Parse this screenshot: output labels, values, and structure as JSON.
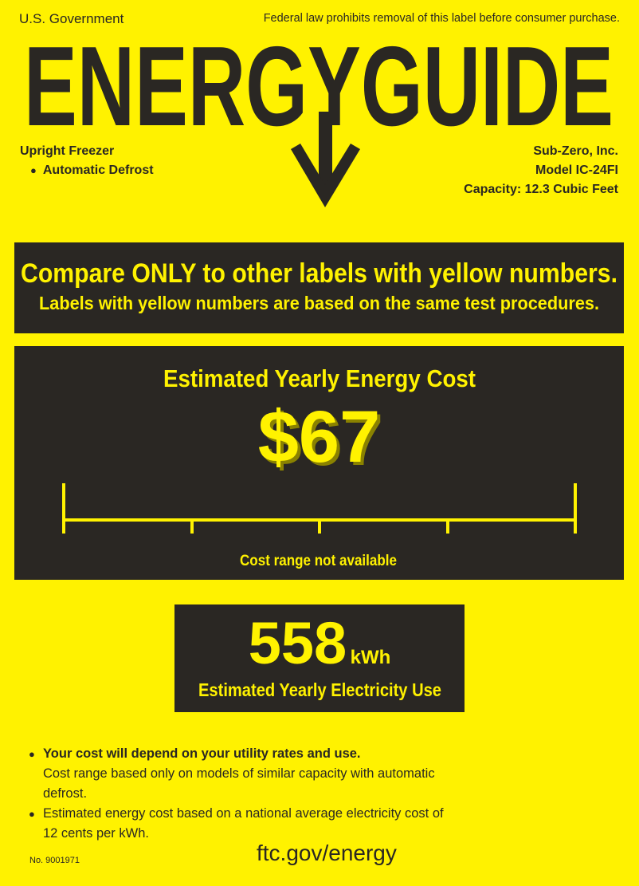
{
  "header": {
    "left": "U.S. Government",
    "right": "Federal law prohibits removal of this label before consumer purchase."
  },
  "logo": {
    "text": "ENERGYGUIDE",
    "arrow_icon": "down-arrow"
  },
  "product": {
    "type": "Upright Freezer",
    "features": [
      "Automatic Defrost"
    ],
    "manufacturer": "Sub-Zero, Inc.",
    "model": "Model IC-24FI",
    "capacity": "Capacity: 12.3 Cubic Feet"
  },
  "compare": {
    "headline": "Compare ONLY to other labels with yellow numbers.",
    "subline": "Labels with yellow numbers are based on the same test procedures."
  },
  "cost": {
    "title": "Estimated Yearly Energy Cost",
    "value": "$67",
    "range_note": "Cost range not available"
  },
  "electricity": {
    "value": "558",
    "unit": "kWh",
    "label": "Estimated Yearly Electricity Use"
  },
  "notes": [
    {
      "bold": "Your cost will depend on your utility rates and use.",
      "text": "Cost range based only on models of similar capacity with automatic defrost."
    },
    {
      "bold": "",
      "text": "Estimated energy cost based on a national average electricity cost of 12 cents per kWh."
    }
  ],
  "footer": {
    "label_no": "No. 9001971",
    "url": "ftc.gov/energy"
  },
  "colors": {
    "background": "#fff200",
    "dark": "#2a2723",
    "accent": "#fff200"
  }
}
